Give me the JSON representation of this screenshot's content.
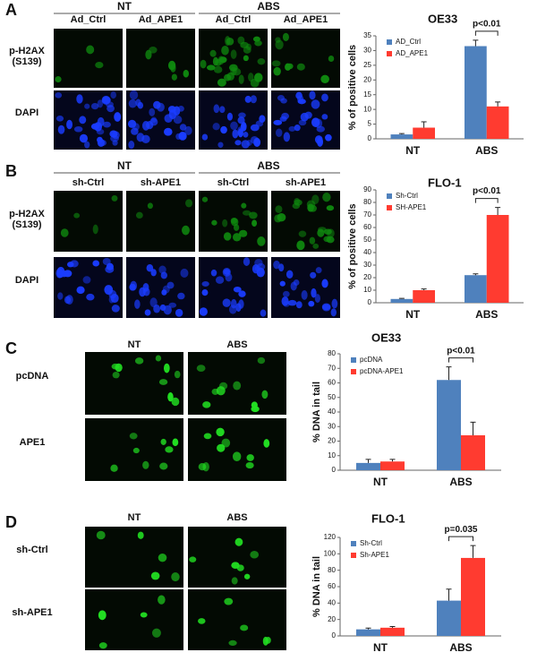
{
  "panels": [
    {
      "letter": "A",
      "groups": [
        "NT",
        "ABS"
      ],
      "columns": [
        "Ad_Ctrl",
        "Ad_APE1",
        "Ad_Ctrl",
        "Ad_APE1"
      ],
      "rows": [
        "p-H2AX (S139)",
        "DAPI"
      ]
    },
    {
      "letter": "B",
      "groups": [
        "NT",
        "ABS"
      ],
      "columns": [
        "sh-Ctrl",
        "sh-APE1",
        "sh-Ctrl",
        "sh-APE1"
      ],
      "rows": [
        "p-H2AX (S139)",
        "DAPI"
      ]
    },
    {
      "letter": "C",
      "columns": [
        "NT",
        "ABS"
      ],
      "rows": [
        "pcDNA",
        "APE1"
      ]
    },
    {
      "letter": "D",
      "columns": [
        "NT",
        "ABS"
      ],
      "rows": [
        "sh-Ctrl",
        "sh-APE1"
      ]
    }
  ],
  "chart_data": [
    {
      "type": "bar",
      "title": "OE33",
      "ylabel": "% of positive cells",
      "categories": [
        "NT",
        "ABS"
      ],
      "annotation": "p<0.01",
      "series": [
        {
          "name": "AD_Ctrl",
          "color": "#4f81bd",
          "values": [
            1.5,
            31.5
          ],
          "errors": [
            0.3,
            2
          ]
        },
        {
          "name": "AD_APE1",
          "color": "#ff3b30",
          "values": [
            3.8,
            11
          ],
          "errors": [
            2,
            1.5
          ]
        }
      ],
      "ylim": [
        0,
        35
      ],
      "yticks": [
        0,
        5,
        10,
        15,
        20,
        25,
        30,
        35
      ]
    },
    {
      "type": "bar",
      "title": "FLO-1",
      "ylabel": "% of positive cells",
      "categories": [
        "NT",
        "ABS"
      ],
      "annotation": "p<0.01",
      "series": [
        {
          "name": "Sh-Ctrl",
          "color": "#4f81bd",
          "values": [
            3,
            22
          ],
          "errors": [
            0.5,
            1
          ]
        },
        {
          "name": "SH-APE1",
          "color": "#ff3b30",
          "values": [
            10,
            70
          ],
          "errors": [
            1,
            6
          ]
        }
      ],
      "ylim": [
        0,
        90
      ],
      "yticks": [
        0,
        10,
        20,
        30,
        40,
        50,
        60,
        70,
        80,
        90
      ]
    },
    {
      "type": "bar",
      "title": "OE33",
      "ylabel": "% DNA in tail",
      "categories": [
        "NT",
        "ABS"
      ],
      "annotation": "p<0.01",
      "series": [
        {
          "name": "pcDNA",
          "color": "#4f81bd",
          "values": [
            5,
            62
          ],
          "errors": [
            2.5,
            9
          ]
        },
        {
          "name": "pcDNA-APE1",
          "color": "#ff3b30",
          "values": [
            6,
            24
          ],
          "errors": [
            1.5,
            9
          ]
        }
      ],
      "ylim": [
        0,
        80
      ],
      "yticks": [
        0,
        10,
        20,
        30,
        40,
        50,
        60,
        70,
        80
      ]
    },
    {
      "type": "bar",
      "title": "FLO-1",
      "ylabel": "% DNA in tail",
      "categories": [
        "NT",
        "ABS"
      ],
      "annotation": "p=0.035",
      "series": [
        {
          "name": "Sh-Ctrl",
          "color": "#4f81bd",
          "values": [
            8,
            43
          ],
          "errors": [
            1.5,
            14
          ]
        },
        {
          "name": "Sh-APE1",
          "color": "#ff3b30",
          "values": [
            10,
            95
          ],
          "errors": [
            1.5,
            15
          ]
        }
      ],
      "ylim": [
        0,
        120
      ],
      "yticks": [
        0,
        20,
        40,
        60,
        80,
        100,
        120
      ]
    }
  ]
}
